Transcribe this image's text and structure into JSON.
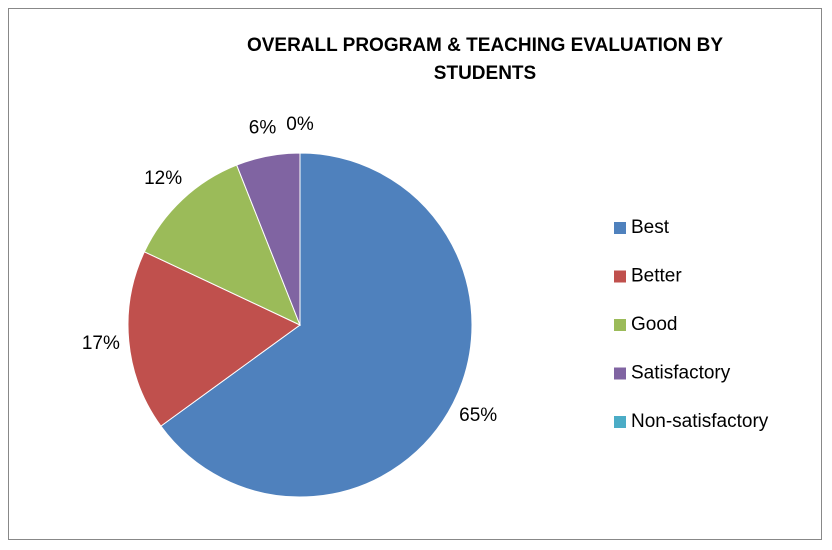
{
  "chart_data": {
    "type": "pie",
    "title": "OVERALL PROGRAM & TEACHING EVALUATION BY STUDENTS",
    "categories": [
      "Best",
      "Better",
      "Good",
      "Satisfactory",
      "Non-satisfactory"
    ],
    "values": [
      65,
      17,
      12,
      6,
      0
    ],
    "value_labels": [
      "65%",
      "17%",
      "12%",
      "6%",
      "0%"
    ],
    "colors": [
      "#4f81bd",
      "#c0504d",
      "#9bbb59",
      "#8064a2",
      "#4bacc6"
    ],
    "legend": "right"
  }
}
